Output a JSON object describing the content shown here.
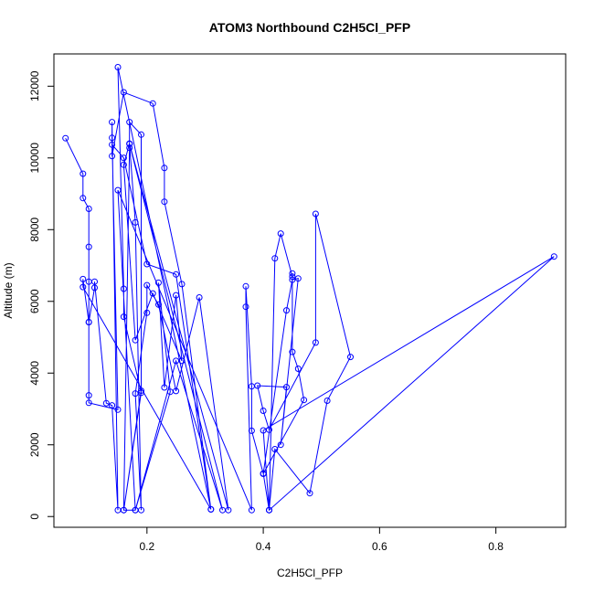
{
  "chart_data": {
    "type": "line",
    "title": "ATOM3 Northbound C2H5Cl_PFP",
    "xlabel": "C2H5Cl_PFP",
    "ylabel": "Altitude (m)",
    "xlim": [
      0.04,
      0.92
    ],
    "ylim": [
      -300,
      12900
    ],
    "xticks": [
      0.2,
      0.4,
      0.6,
      0.8
    ],
    "xtick_labels": [
      "0.2",
      "0.4",
      "0.6",
      "0.8"
    ],
    "yticks": [
      0,
      2000,
      4000,
      6000,
      8000,
      10000,
      12000
    ],
    "ytick_labels": [
      "0",
      "2000",
      "4000",
      "6000",
      "8000",
      "10000",
      "12000"
    ],
    "grid": false,
    "color": "#0000ff",
    "series": [
      {
        "x": [
          0.06,
          0.09,
          0.09,
          0.1,
          0.1,
          0.1,
          0.1,
          0.1,
          0.1,
          0.15,
          0.14,
          0.14,
          0.16,
          0.2,
          0.25,
          0.31,
          0.09,
          0.09,
          0.1,
          0.11,
          0.11,
          0.13,
          0.14,
          0.15,
          0.14,
          0.14,
          0.16,
          0.21,
          0.23,
          0.23,
          0.26,
          0.31,
          0.15,
          0.16,
          0.16,
          0.19,
          0.16,
          0.17,
          0.17,
          0.19,
          0.19,
          0.16,
          0.18,
          0.25,
          0.33,
          0.17,
          0.18,
          0.19,
          0.18,
          0.2,
          0.2,
          0.22,
          0.25,
          0.29,
          0.34,
          0.17,
          0.16,
          0.18,
          0.21,
          0.26,
          0.25,
          0.23,
          0.22,
          0.24,
          0.18,
          0.15,
          0.38,
          0.37,
          0.37,
          0.38,
          0.38,
          0.4,
          0.41,
          0.42,
          0.43,
          0.45,
          0.45,
          0.45,
          0.46,
          0.47,
          0.4,
          0.44,
          0.45,
          0.46,
          0.43,
          0.44,
          0.39,
          0.4,
          0.41,
          0.49,
          0.49,
          0.55,
          0.51,
          0.48,
          0.42,
          0.41,
          0.9,
          0.4,
          0.41
        ],
        "y": [
          10550,
          9560,
          8880,
          8580,
          7520,
          6550,
          5420,
          3380,
          3170,
          2980,
          10560,
          10370,
          10000,
          7040,
          6750,
          200,
          6400,
          6620,
          5420,
          6380,
          6550,
          3160,
          3100,
          180,
          11000,
          10050,
          11830,
          11520,
          9720,
          8780,
          6480,
          200,
          12530,
          6350,
          5570,
          3450,
          180,
          10280,
          11000,
          10650,
          3510,
          180,
          180,
          4340,
          180,
          10390,
          8200,
          180,
          3430,
          5680,
          6450,
          5910,
          3500,
          6110,
          180,
          10400,
          9810,
          4920,
          6220,
          4340,
          6170,
          3600,
          6520,
          3480,
          180,
          9100,
          180,
          5850,
          6420,
          3630,
          2390,
          1200,
          180,
          7200,
          7890,
          6690,
          6780,
          4590,
          4120,
          3250,
          1190,
          5750,
          6600,
          6640,
          2000,
          3610,
          3650,
          2950,
          2420,
          4850,
          8440,
          4450,
          3230,
          650,
          1880,
          180,
          7250,
          2400,
          180
        ]
      }
    ]
  }
}
